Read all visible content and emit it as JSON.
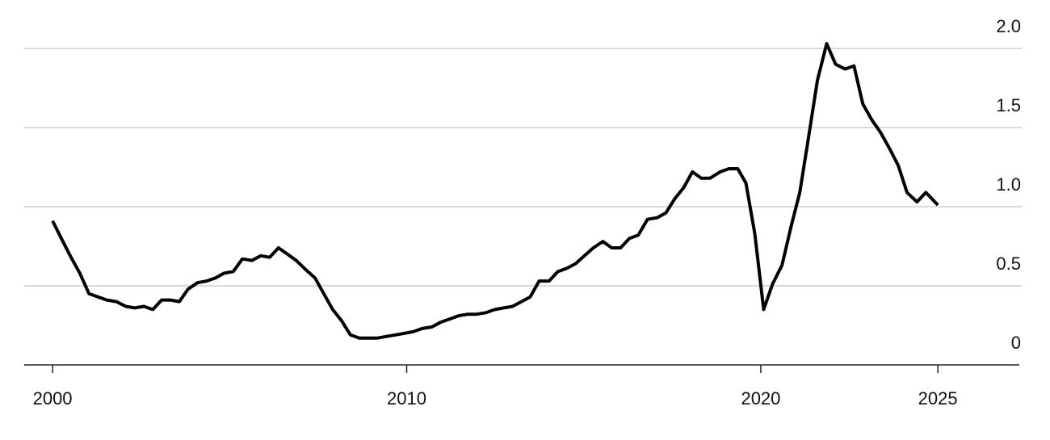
{
  "chart_data": {
    "type": "line",
    "x": [
      2000.0,
      2000.27,
      2000.52,
      2000.77,
      2001.03,
      2001.28,
      2001.53,
      2001.8,
      2002.07,
      2002.32,
      2002.58,
      2002.83,
      2003.08,
      2003.33,
      2003.58,
      2003.83,
      2004.1,
      2004.35,
      2004.6,
      2004.85,
      2005.1,
      2005.36,
      2005.63,
      2005.88,
      2006.13,
      2006.38,
      2006.63,
      2006.88,
      2007.16,
      2007.41,
      2007.66,
      2007.91,
      2008.16,
      2008.41,
      2008.66,
      2008.93,
      2009.18,
      2009.43,
      2009.69,
      2009.94,
      2010.19,
      2010.44,
      2010.71,
      2010.96,
      2011.21,
      2011.46,
      2011.71,
      2011.96,
      2012.24,
      2012.49,
      2012.74,
      2012.99,
      2013.24,
      2013.49,
      2013.74,
      2014.02,
      2014.27,
      2014.52,
      2014.77,
      2015.02,
      2015.27,
      2015.54,
      2015.79,
      2016.04,
      2016.29,
      2016.54,
      2016.8,
      2017.07,
      2017.32,
      2017.57,
      2017.82,
      2018.07,
      2018.32,
      2018.57,
      2018.85,
      2019.1,
      2019.35,
      2019.58,
      2019.83,
      2020.08,
      2020.33,
      2020.6,
      2020.85,
      2021.1,
      2021.35,
      2021.6,
      2021.86,
      2022.11,
      2022.38,
      2022.63,
      2022.88,
      2023.13,
      2023.38,
      2023.63,
      2023.88,
      2024.13,
      2024.41,
      2024.66,
      2025.0
    ],
    "y": [
      0.91,
      0.79,
      0.68,
      0.58,
      0.45,
      0.43,
      0.41,
      0.4,
      0.37,
      0.36,
      0.37,
      0.35,
      0.41,
      0.41,
      0.4,
      0.48,
      0.52,
      0.53,
      0.55,
      0.58,
      0.59,
      0.67,
      0.66,
      0.69,
      0.68,
      0.74,
      0.7,
      0.66,
      0.6,
      0.55,
      0.45,
      0.35,
      0.28,
      0.19,
      0.17,
      0.17,
      0.17,
      0.18,
      0.19,
      0.2,
      0.21,
      0.23,
      0.24,
      0.27,
      0.29,
      0.31,
      0.32,
      0.32,
      0.33,
      0.35,
      0.36,
      0.37,
      0.4,
      0.43,
      0.53,
      0.53,
      0.59,
      0.61,
      0.64,
      0.69,
      0.74,
      0.78,
      0.74,
      0.74,
      0.8,
      0.82,
      0.92,
      0.93,
      0.96,
      1.05,
      1.12,
      1.22,
      1.18,
      1.18,
      1.22,
      1.24,
      1.24,
      1.15,
      0.83,
      0.35,
      0.51,
      0.63,
      0.87,
      1.09,
      1.44,
      1.8,
      2.03,
      1.9,
      1.87,
      1.89,
      1.65,
      1.55,
      1.47,
      1.37,
      1.26,
      1.09,
      1.03,
      1.09,
      1.01
    ],
    "color": "#000000",
    "xlim": [
      1999.2,
      2027.3
    ],
    "xticks": [
      2000,
      2010,
      2020,
      2025
    ],
    "ylim": [
      0,
      2.0
    ],
    "yticks": [
      0,
      0.5,
      {
        "value": 1,
        "label": "1.0"
      },
      {
        "value": 1.5,
        "label": "1.5"
      },
      {
        "value": 2,
        "label": "2.0"
      }
    ],
    "grid": true
  }
}
